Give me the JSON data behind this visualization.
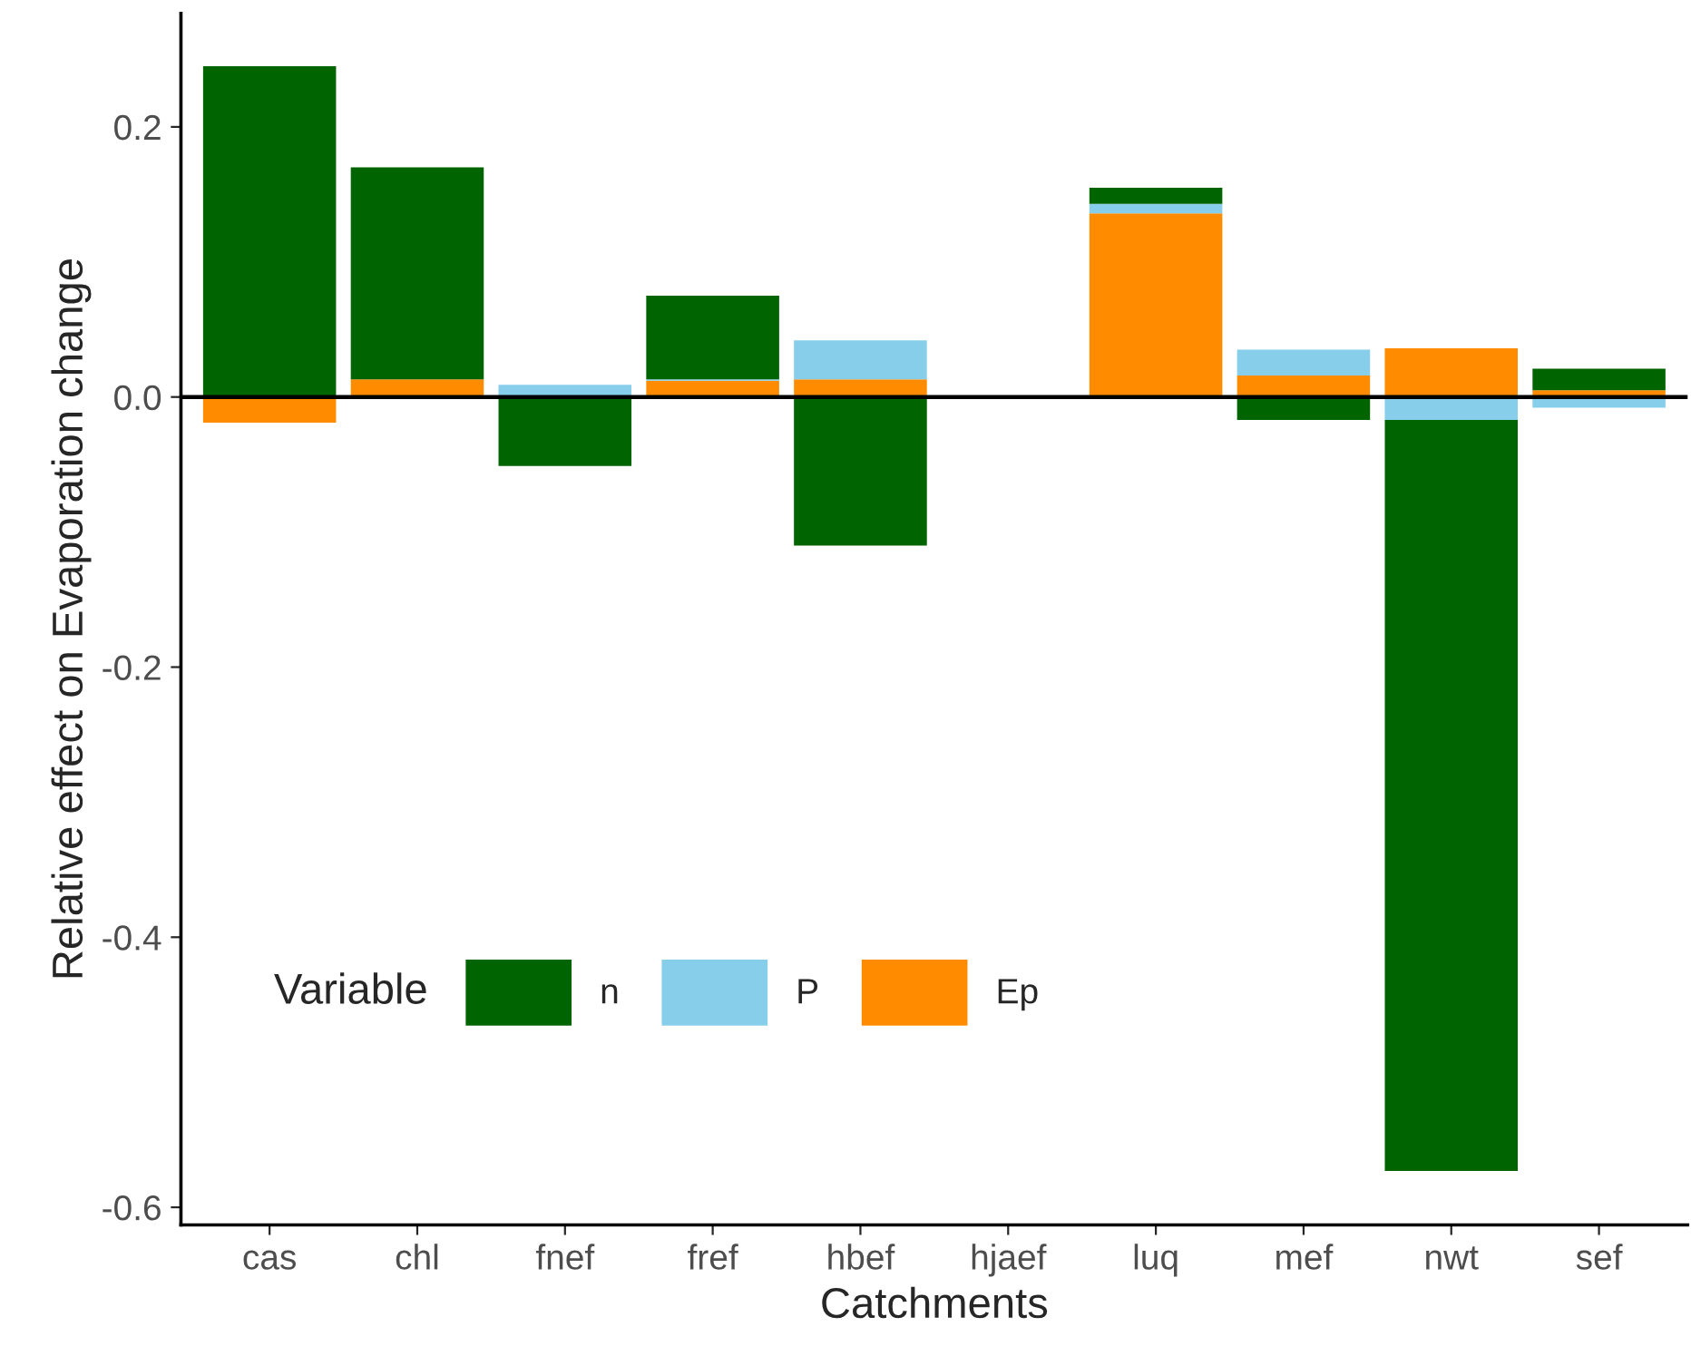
{
  "chart_data": {
    "type": "bar",
    "stacked": true,
    "xlabel": "Catchments",
    "ylabel": "Relative effect on Evaporation change",
    "legend_title": "Variable",
    "legend": "bottom left",
    "categories": [
      "cas",
      "chl",
      "fnef",
      "fref",
      "hbef",
      "hjaef",
      "luq",
      "mef",
      "nwt",
      "sef"
    ],
    "series": [
      {
        "name": "Ep",
        "color": "#ff8c00",
        "values": [
          -0.019,
          0.013,
          null,
          0.012,
          0.013,
          null,
          0.136,
          0.016,
          0.036,
          0.005
        ]
      },
      {
        "name": "P",
        "color": "#87ceeb",
        "values": [
          null,
          null,
          0.009,
          0.001,
          0.029,
          null,
          0.007,
          0.019,
          -0.017,
          -0.008
        ]
      },
      {
        "name": "n",
        "color": "#006400",
        "values": [
          0.245,
          0.157,
          -0.051,
          0.062,
          -0.11,
          null,
          0.012,
          -0.017,
          -0.556,
          0.016
        ]
      }
    ],
    "ylim": [
      -0.613,
      0.284
    ],
    "yticks": [
      {
        "value": -0.6,
        "label": "-0.6"
      },
      {
        "value": -0.4,
        "label": "-0.4"
      },
      {
        "value": -0.2,
        "label": "-0.2"
      },
      {
        "value": 0,
        "label": "0.0"
      },
      {
        "value": 0.2,
        "label": "0.2"
      }
    ],
    "ref_lines": [
      {
        "axis": "y",
        "value": 0,
        "color": "#000000"
      }
    ],
    "grid": false
  }
}
